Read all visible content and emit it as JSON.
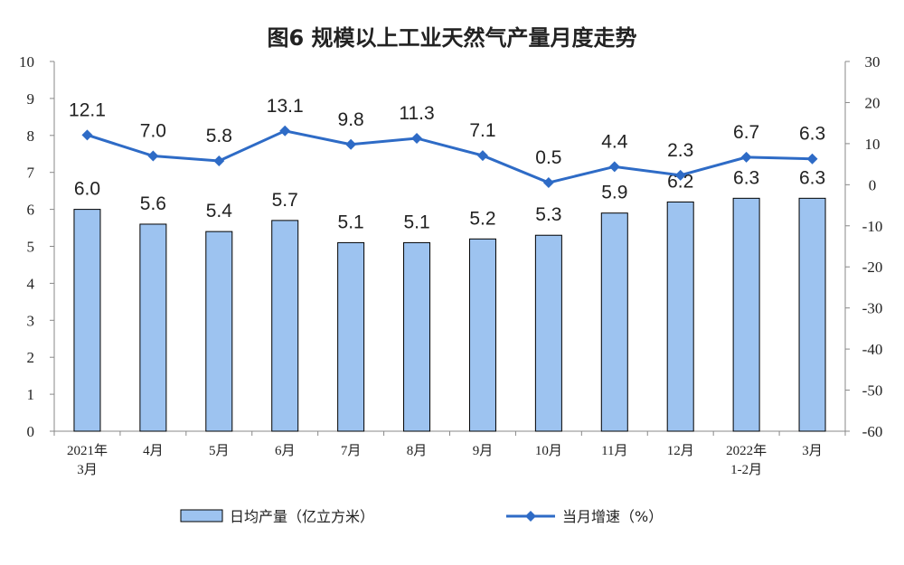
{
  "chart_data": {
    "type": "bar+line",
    "title": "图6  规模以上工业天然气产量月度走势",
    "categories": [
      {
        "line1": "2021年",
        "line2": "3月"
      },
      {
        "line1": "4月",
        "line2": ""
      },
      {
        "line1": "5月",
        "line2": ""
      },
      {
        "line1": "6月",
        "line2": ""
      },
      {
        "line1": "7月",
        "line2": ""
      },
      {
        "line1": "8月",
        "line2": ""
      },
      {
        "line1": "9月",
        "line2": ""
      },
      {
        "line1": "10月",
        "line2": ""
      },
      {
        "line1": "11月",
        "line2": ""
      },
      {
        "line1": "12月",
        "line2": ""
      },
      {
        "line1": "2022年",
        "line2": "1-2月"
      },
      {
        "line1": "3月",
        "line2": ""
      }
    ],
    "series": [
      {
        "name": "日均产量（亿立方米）",
        "type": "bar",
        "axis": "left",
        "color": "#9dc3f0",
        "values": [
          6.0,
          5.6,
          5.4,
          5.7,
          5.1,
          5.1,
          5.2,
          5.3,
          5.9,
          6.2,
          6.3,
          6.3
        ],
        "labels": [
          "6.0",
          "5.6",
          "5.4",
          "5.7",
          "5.1",
          "5.1",
          "5.2",
          "5.3",
          "5.9",
          "6.2",
          "6.3",
          "6.3"
        ]
      },
      {
        "name": "当月增速（%）",
        "type": "line",
        "axis": "right",
        "color": "#2e6bc6",
        "values": [
          12.1,
          7.0,
          5.8,
          13.1,
          9.8,
          11.3,
          7.1,
          0.5,
          4.4,
          2.3,
          6.7,
          6.3
        ],
        "labels": [
          "12.1",
          "7.0",
          "5.8",
          "13.1",
          "9.8",
          "11.3",
          "7.1",
          "0.5",
          "4.4",
          "2.3",
          "6.7",
          "6.3"
        ]
      }
    ],
    "left_axis": {
      "min": 0,
      "max": 10,
      "step": 1
    },
    "right_axis": {
      "min": -60,
      "max": 30,
      "step": 10
    },
    "legend_placement": "bottom"
  }
}
